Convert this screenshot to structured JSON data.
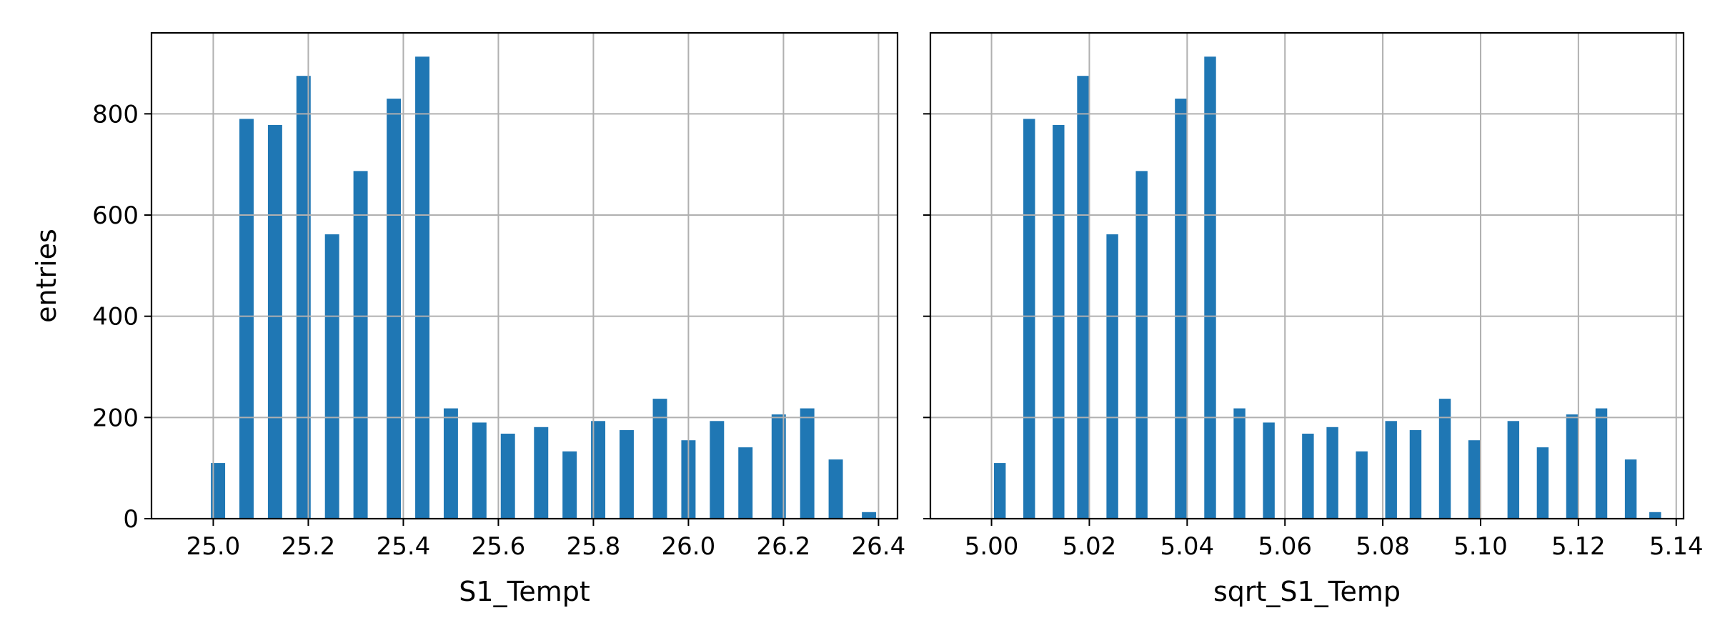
{
  "chart_data": [
    {
      "type": "bar",
      "panel": "left",
      "xlabel": "S1_Tempt",
      "ylabel": "entries",
      "xlim": [
        24.87,
        26.44
      ],
      "ylim": [
        0,
        960
      ],
      "bar_width": 0.03,
      "grid": true,
      "xticks": [
        "25.0",
        "25.2",
        "25.4",
        "25.6",
        "25.8",
        "26.0",
        "26.2",
        "26.4"
      ],
      "yticks": [
        "0",
        "200",
        "400",
        "600",
        "800"
      ],
      "x": [
        25.01,
        25.07,
        25.13,
        25.19,
        25.25,
        25.31,
        25.38,
        25.44,
        25.5,
        25.56,
        25.62,
        25.69,
        25.75,
        25.81,
        25.87,
        25.94,
        26.0,
        26.06,
        26.12,
        26.19,
        26.25,
        26.31,
        26.38
      ],
      "values": [
        110,
        790,
        778,
        875,
        562,
        687,
        830,
        913,
        218,
        190,
        168,
        181,
        133,
        193,
        175,
        237,
        155,
        193,
        141,
        206,
        218,
        117,
        13
      ],
      "color": "#1f77b4"
    },
    {
      "type": "bar",
      "panel": "right",
      "xlabel": "sqrt_S1_Temp",
      "ylabel": "",
      "xlim": [
        4.9875,
        5.1415
      ],
      "ylim": [
        0,
        960
      ],
      "bar_width": 0.0024,
      "grid": true,
      "xticks": [
        "5.00",
        "5.02",
        "5.04",
        "5.06",
        "5.08",
        "5.10",
        "5.12",
        "5.14"
      ],
      "yticks": [],
      "x": [
        5.0017,
        5.0077,
        5.0137,
        5.0187,
        5.0247,
        5.0307,
        5.0387,
        5.0447,
        5.0507,
        5.0567,
        5.0647,
        5.0697,
        5.0757,
        5.0817,
        5.0867,
        5.0927,
        5.0987,
        5.1067,
        5.1127,
        5.1187,
        5.1247,
        5.1307,
        5.1357
      ],
      "values": [
        110,
        790,
        778,
        875,
        562,
        687,
        830,
        913,
        218,
        190,
        168,
        181,
        133,
        193,
        175,
        237,
        155,
        193,
        141,
        206,
        218,
        117,
        13
      ],
      "color": "#1f77b4"
    }
  ]
}
